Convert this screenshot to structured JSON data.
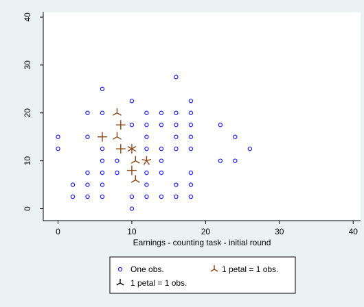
{
  "chart_data": {
    "type": "scatter",
    "title": "",
    "xlabel": "Earnings - counting task - initial round",
    "ylabel": "",
    "xlim": [
      -2,
      41
    ],
    "ylim": [
      -2.5,
      41
    ],
    "x_ticks": [
      0,
      10,
      20,
      30,
      40
    ],
    "y_ticks": [
      0,
      10,
      20,
      30,
      40
    ],
    "grid": false,
    "legend_position": "bottom",
    "series": [
      {
        "name": "One obs.",
        "marker": "circle",
        "color": "#1a1aff",
        "points": [
          [
            0,
            15
          ],
          [
            0,
            12.5
          ],
          [
            2,
            5
          ],
          [
            2,
            2.5
          ],
          [
            4,
            20
          ],
          [
            4,
            15
          ],
          [
            4,
            7.5
          ],
          [
            4,
            5
          ],
          [
            4,
            2.5
          ],
          [
            6,
            25
          ],
          [
            6,
            20
          ],
          [
            6,
            12.5
          ],
          [
            6,
            10
          ],
          [
            6,
            7.5
          ],
          [
            6,
            5
          ],
          [
            6,
            2.5
          ],
          [
            8,
            10
          ],
          [
            8,
            7.5
          ],
          [
            10,
            22.5
          ],
          [
            10,
            17.5
          ],
          [
            10,
            2.5
          ],
          [
            10,
            0
          ],
          [
            12,
            20
          ],
          [
            12,
            17.5
          ],
          [
            12,
            15
          ],
          [
            12,
            12.5
          ],
          [
            12,
            7.5
          ],
          [
            12,
            5
          ],
          [
            12,
            2.5
          ],
          [
            14,
            20
          ],
          [
            14,
            17.5
          ],
          [
            14,
            12.5
          ],
          [
            14,
            10
          ],
          [
            14,
            7.5
          ],
          [
            14,
            2.5
          ],
          [
            16,
            27.5
          ],
          [
            16,
            20
          ],
          [
            16,
            17.5
          ],
          [
            16,
            15
          ],
          [
            16,
            12.5
          ],
          [
            16,
            5
          ],
          [
            16,
            2.5
          ],
          [
            18,
            22.5
          ],
          [
            18,
            20
          ],
          [
            18,
            17.5
          ],
          [
            18,
            15
          ],
          [
            18,
            12.5
          ],
          [
            18,
            7.5
          ],
          [
            18,
            5
          ],
          [
            18,
            2.5
          ],
          [
            22,
            17.5
          ],
          [
            22,
            10
          ],
          [
            24,
            15
          ],
          [
            24,
            10
          ],
          [
            26,
            12.5
          ]
        ]
      },
      {
        "name": "1 petal = 1 obs.",
        "marker": "sunflower",
        "color": "#8b4513",
        "points": [
          {
            "x": 6,
            "y": 15,
            "petals": 4
          },
          {
            "x": 8,
            "y": 20,
            "petals": 3
          },
          {
            "x": 8,
            "y": 15,
            "petals": 3
          },
          {
            "x": 8.5,
            "y": 17.5,
            "petals": 4
          },
          {
            "x": 8.5,
            "y": 12.5,
            "petals": 4
          },
          {
            "x": 10,
            "y": 12.5,
            "petals": 6
          },
          {
            "x": 10,
            "y": 8,
            "petals": 4
          },
          {
            "x": 10.5,
            "y": 10,
            "petals": 3
          },
          {
            "x": 12,
            "y": 10,
            "petals": 5
          },
          {
            "x": 10.5,
            "y": 6,
            "petals": 3
          }
        ]
      }
    ],
    "legend": {
      "one_obs_label": "One obs.",
      "petal_label_1": "1 petal = 1 obs.",
      "petal_label_2": "1 petal = 1 obs."
    }
  }
}
